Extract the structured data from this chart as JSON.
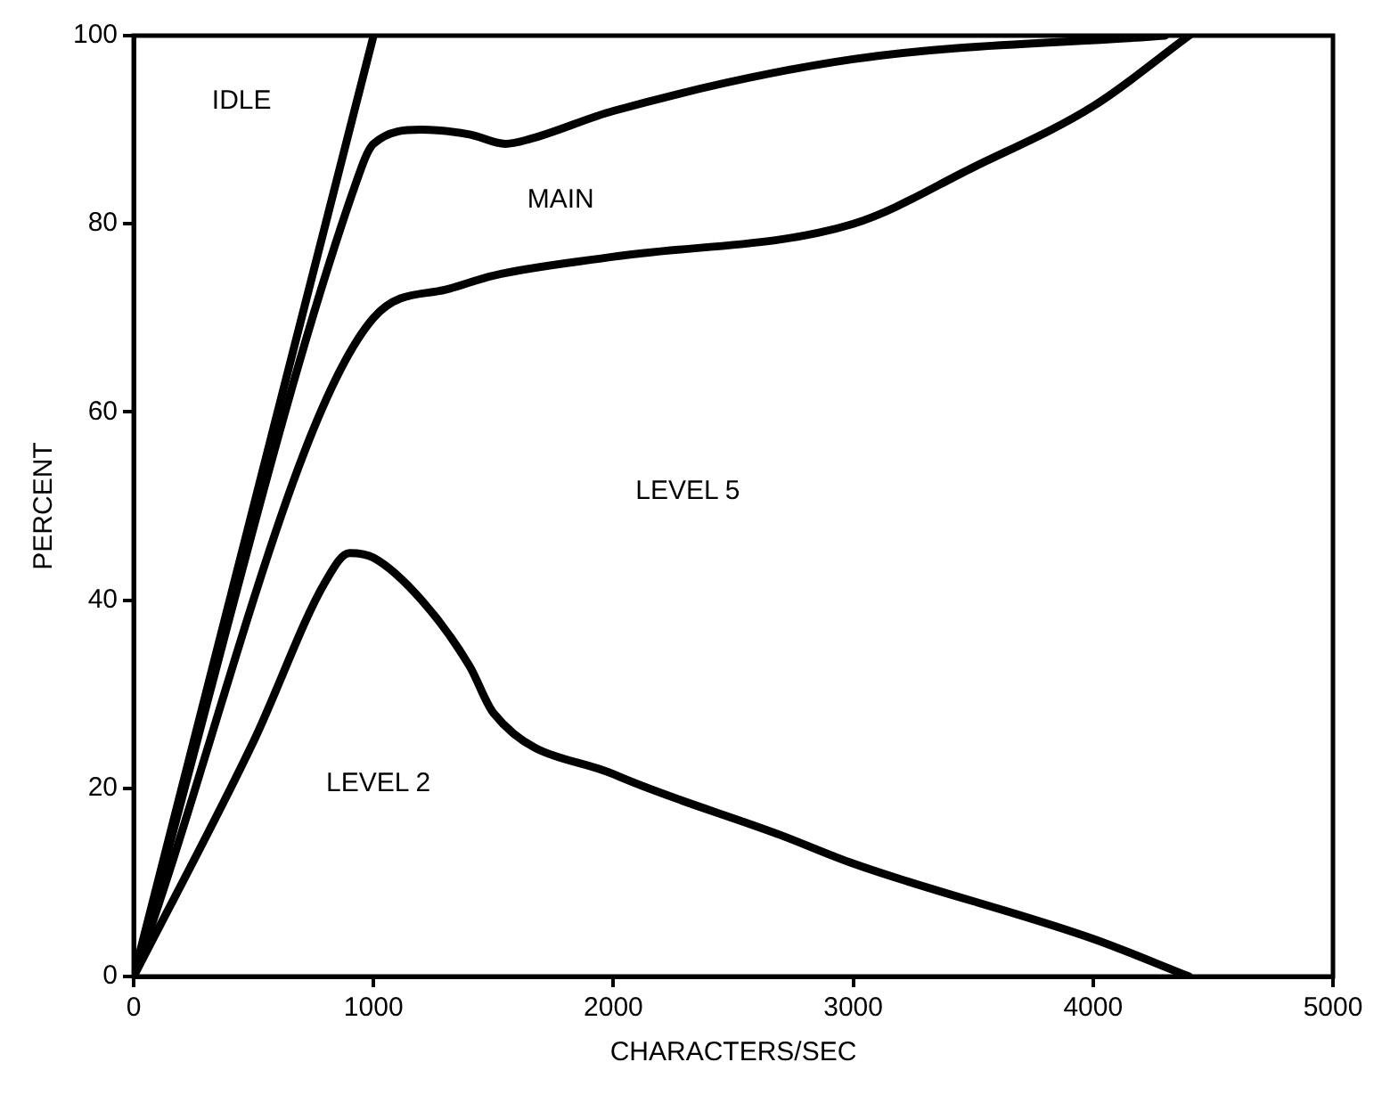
{
  "chart_data": {
    "type": "line",
    "xlabel": "CHARACTERS/SEC",
    "ylabel": "PERCENT",
    "xlim": [
      0,
      5000
    ],
    "xticks": [
      0,
      1000,
      2000,
      3000,
      4000,
      5000
    ],
    "ylim": [
      0,
      100
    ],
    "yticks": [
      0,
      20,
      40,
      60,
      80,
      100
    ],
    "grid": false,
    "legend": false,
    "marker": "none",
    "line_style": "solid",
    "series": [
      {
        "color": "#000000",
        "x": [
          0,
          500,
          800,
          900,
          1000,
          1200,
          1400,
          1500,
          2000,
          2700,
          3000,
          4000,
          4400
        ],
        "values": [
          0,
          25,
          42,
          45,
          44.5,
          40,
          33,
          28,
          21.5,
          15,
          12,
          4,
          0
        ]
      },
      {
        "color": "#000000",
        "x": [
          0,
          1000,
          1300,
          1500,
          2000,
          3000,
          3500,
          4000,
          4400
        ],
        "values": [
          0,
          70,
          73,
          74.5,
          76.5,
          80,
          86,
          92.5,
          100
        ]
      },
      {
        "color": "#000000",
        "x": [
          0,
          950,
          1000,
          1200,
          1400,
          1550,
          1650,
          2000,
          3000,
          4300
        ],
        "values": [
          0,
          86,
          88.5,
          90,
          89.5,
          88.5,
          89,
          92,
          97.5,
          100
        ]
      },
      {
        "color": "#000000",
        "x": [
          0,
          1000
        ],
        "values": [
          0,
          100
        ]
      }
    ],
    "annotations": [
      "IDLE",
      "MAIN",
      "LEVEL 5",
      "LEVEL 2"
    ]
  }
}
